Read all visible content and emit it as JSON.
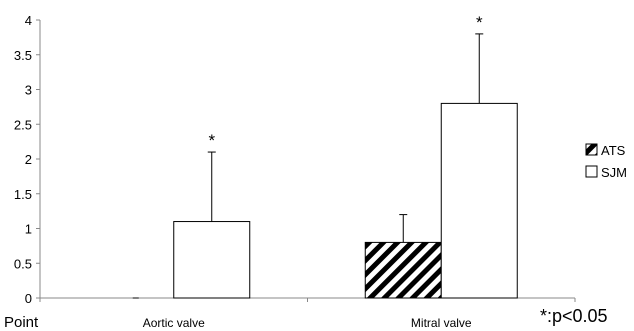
{
  "chart_data": {
    "type": "bar",
    "title": "",
    "xlabel": "Point",
    "ylabel": "",
    "ylim": [
      0,
      4
    ],
    "yticks": [
      "0",
      "0.5",
      "1",
      "1.5",
      "2",
      "2.5",
      "3",
      "3.5",
      "4"
    ],
    "ytick_values": [
      0,
      0.5,
      1,
      1.5,
      2,
      2.5,
      3,
      3.5,
      4
    ],
    "categories": [
      "Aortic valve",
      "Mitral valve"
    ],
    "series": [
      {
        "name": "ATS",
        "values": [
          0,
          0.8
        ],
        "error": [
          0,
          0.4
        ],
        "fill": "diagonal-hatch"
      },
      {
        "name": "SJM",
        "values": [
          1.1,
          2.8
        ],
        "error": [
          1.0,
          1.0
        ],
        "fill": "white"
      }
    ],
    "significance_marker": "*",
    "significant_categories": [
      0,
      1
    ],
    "significant_series": "SJM",
    "note": "*:p<0.05",
    "grid": false,
    "legend_position": "right",
    "colors": {
      "bar_outline": "#000000",
      "axis": "#888888",
      "hatch": "#000000"
    }
  }
}
